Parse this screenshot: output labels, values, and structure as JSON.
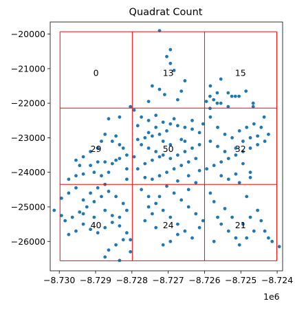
{
  "chart_data": {
    "type": "scatter",
    "title": "Quadrat Count",
    "xlabel": "",
    "ylabel": "",
    "x_offset_label": "1e6",
    "xlim": [
      -8.73025,
      -8.72385
    ],
    "ylim": [
      -26850,
      -19650
    ],
    "x_ticks": [
      -8.73,
      -8.729,
      -8.728,
      -8.727,
      -8.726,
      -8.725,
      -8.724
    ],
    "x_tick_labels": [
      "−8.730",
      "−8.729",
      "−8.728",
      "−8.727",
      "−8.726",
      "−8.725",
      "−8.724"
    ],
    "y_ticks": [
      -20000,
      -21000,
      -22000,
      -23000,
      -24000,
      -25000,
      -26000
    ],
    "y_tick_labels": [
      "−20000",
      "−21000",
      "−22000",
      "−23000",
      "−24000",
      "−25000",
      "−26000"
    ],
    "grid": false,
    "point_color": "#1f77b4",
    "quadrat_color": "#ff0000",
    "quadrats": {
      "x_edges": [
        -8.72998,
        -8.72799,
        -8.726,
        -8.72401
      ],
      "y_edges": [
        -19930,
        -22140,
        -24350,
        -26560
      ]
    },
    "counts": [
      {
        "x": -8.72899,
        "y": -21130,
        "label": "0"
      },
      {
        "x": -8.727,
        "y": -21130,
        "label": "13"
      },
      {
        "x": -8.72501,
        "y": -21130,
        "label": "15"
      },
      {
        "x": -8.72899,
        "y": -23330,
        "label": "29"
      },
      {
        "x": -8.727,
        "y": -23330,
        "label": "50"
      },
      {
        "x": -8.72501,
        "y": -23330,
        "label": "32"
      },
      {
        "x": -8.72899,
        "y": -25540,
        "label": "40"
      },
      {
        "x": -8.727,
        "y": -25540,
        "label": "24"
      },
      {
        "x": -8.72501,
        "y": -25540,
        "label": "21"
      }
    ],
    "points": [
      [
        -8.72724,
        -19900
      ],
      [
        -8.72694,
        -20450
      ],
      [
        -8.72704,
        -20650
      ],
      [
        -8.72694,
        -20850
      ],
      [
        -8.72684,
        -21050
      ],
      [
        -8.72724,
        -21600
      ],
      [
        -8.72744,
        -21500
      ],
      [
        -8.7271,
        -21750
      ],
      [
        -8.72654,
        -21350
      ],
      [
        -8.72664,
        -21650
      ],
      [
        -8.72754,
        -21950
      ],
      [
        -8.72674,
        -21900
      ],
      [
        -8.72595,
        -21950
      ],
      [
        -8.72585,
        -22150
      ],
      [
        -8.72565,
        -21700
      ],
      [
        -8.72584,
        -21500
      ],
      [
        -8.72555,
        -21300
      ],
      [
        -8.72535,
        -21700
      ],
      [
        -8.72525,
        -21800
      ],
      [
        -8.72515,
        -21800
      ],
      [
        -8.72505,
        -21800
      ],
      [
        -8.72486,
        -21650
      ],
      [
        -8.72585,
        -21800
      ],
      [
        -8.72575,
        -21900
      ],
      [
        -8.72565,
        -22000
      ],
      [
        -8.72555,
        -22000
      ],
      [
        -8.72535,
        -22100
      ],
      [
        -8.72466,
        -22000
      ],
      [
        -8.72466,
        -22100
      ],
      [
        -8.72436,
        -22400
      ],
      [
        -8.72864,
        -22450
      ],
      [
        -8.72834,
        -22400
      ],
      [
        -8.72804,
        -22100
      ],
      [
        -8.72794,
        -22200
      ],
      [
        -8.72844,
        -22950
      ],
      [
        -8.72854,
        -23100
      ],
      [
        -8.72874,
        -22900
      ],
      [
        -8.72884,
        -23100
      ],
      [
        -8.72894,
        -23300
      ],
      [
        -8.72914,
        -23400
      ],
      [
        -8.72934,
        -23550
      ],
      [
        -8.72954,
        -23650
      ],
      [
        -8.72944,
        -23800
      ],
      [
        -8.72914,
        -23800
      ],
      [
        -8.72894,
        -23700
      ],
      [
        -8.72874,
        -23700
      ],
      [
        -8.72854,
        -23750
      ],
      [
        -8.72834,
        -23600
      ],
      [
        -8.72814,
        -23500
      ],
      [
        -8.72824,
        -23300
      ],
      [
        -8.72834,
        -23200
      ],
      [
        -8.72864,
        -24000
      ],
      [
        -8.72884,
        -24100
      ],
      [
        -8.72904,
        -24000
      ],
      [
        -8.72934,
        -24050
      ],
      [
        -8.72954,
        -24100
      ],
      [
        -8.72974,
        -24200
      ],
      [
        -8.72814,
        -23900
      ],
      [
        -8.72844,
        -23650
      ],
      [
        -8.72814,
        -24200
      ],
      [
        -8.72774,
        -22400
      ],
      [
        -8.72754,
        -22500
      ],
      [
        -8.72734,
        -22350
      ],
      [
        -8.72714,
        -22550
      ],
      [
        -8.72694,
        -22600
      ],
      [
        -8.72674,
        -22650
      ],
      [
        -8.72654,
        -22700
      ],
      [
        -8.72634,
        -22750
      ],
      [
        -8.72614,
        -22850
      ],
      [
        -8.72704,
        -22800
      ],
      [
        -8.72724,
        -22900
      ],
      [
        -8.72744,
        -22950
      ],
      [
        -8.72764,
        -23000
      ],
      [
        -8.72784,
        -23050
      ],
      [
        -8.72774,
        -23200
      ],
      [
        -8.72754,
        -23300
      ],
      [
        -8.72734,
        -23400
      ],
      [
        -8.72714,
        -23500
      ],
      [
        -8.72694,
        -23600
      ],
      [
        -8.72674,
        -23500
      ],
      [
        -8.72654,
        -23400
      ],
      [
        -8.72634,
        -23300
      ],
      [
        -8.72614,
        -23200
      ],
      [
        -8.72624,
        -23600
      ],
      [
        -8.72644,
        -23700
      ],
      [
        -8.72664,
        -23800
      ],
      [
        -8.72684,
        -23900
      ],
      [
        -8.72704,
        -24000
      ],
      [
        -8.72724,
        -24100
      ],
      [
        -8.72744,
        -24200
      ],
      [
        -8.72764,
        -24150
      ],
      [
        -8.72784,
        -23900
      ],
      [
        -8.72764,
        -23750
      ],
      [
        -8.72744,
        -23650
      ],
      [
        -8.72724,
        -23550
      ],
      [
        -8.72664,
        -23050
      ],
      [
        -8.72634,
        -22500
      ],
      [
        -8.72604,
        -22600
      ],
      [
        -8.72614,
        -23950
      ],
      [
        -8.72644,
        -24100
      ],
      [
        -8.72674,
        -24250
      ],
      [
        -8.72694,
        -23200
      ],
      [
        -8.72714,
        -23100
      ],
      [
        -8.72734,
        -22700
      ],
      [
        -8.72784,
        -22650
      ],
      [
        -8.72754,
        -22850
      ],
      [
        -8.72794,
        -23550
      ],
      [
        -8.72684,
        -22450
      ],
      [
        -8.72654,
        -23100
      ],
      [
        -8.72624,
        -24300
      ],
      [
        -8.72584,
        -22400
      ],
      [
        -8.72564,
        -22700
      ],
      [
        -8.72544,
        -22900
      ],
      [
        -8.72524,
        -23000
      ],
      [
        -8.72504,
        -22800
      ],
      [
        -8.72484,
        -22700
      ],
      [
        -8.72464,
        -22600
      ],
      [
        -8.72444,
        -22700
      ],
      [
        -8.72424,
        -22900
      ],
      [
        -8.72434,
        -23100
      ],
      [
        -8.72454,
        -23200
      ],
      [
        -8.72474,
        -23300
      ],
      [
        -8.72494,
        -23400
      ],
      [
        -8.72514,
        -23500
      ],
      [
        -8.72534,
        -23600
      ],
      [
        -8.72554,
        -23700
      ],
      [
        -8.72574,
        -23800
      ],
      [
        -8.72594,
        -23900
      ],
      [
        -8.72514,
        -23300
      ],
      [
        -8.72494,
        -23100
      ],
      [
        -8.72474,
        -23000
      ],
      [
        -8.72454,
        -22950
      ],
      [
        -8.72544,
        -23400
      ],
      [
        -8.72564,
        -23250
      ],
      [
        -8.72584,
        -23100
      ],
      [
        -8.72494,
        -23750
      ],
      [
        -8.72474,
        -24000
      ],
      [
        -8.72514,
        -24050
      ],
      [
        -8.72554,
        -24100
      ],
      [
        -8.72534,
        -24200
      ],
      [
        -8.72504,
        -24300
      ],
      [
        -8.72474,
        -24150
      ],
      [
        -8.73014,
        -25100
      ],
      [
        -8.72994,
        -25250
      ],
      [
        -8.72984,
        -25400
      ],
      [
        -8.72964,
        -25300
      ],
      [
        -8.72944,
        -25150
      ],
      [
        -8.72924,
        -25000
      ],
      [
        -8.72904,
        -24850
      ],
      [
        -8.72884,
        -24700
      ],
      [
        -8.72864,
        -24550
      ],
      [
        -8.72844,
        -24700
      ],
      [
        -8.72824,
        -24900
      ],
      [
        -8.72814,
        -25100
      ],
      [
        -8.72834,
        -25300
      ],
      [
        -8.72854,
        -25450
      ],
      [
        -8.72874,
        -25600
      ],
      [
        -8.72894,
        -25750
      ],
      [
        -8.72914,
        -25650
      ],
      [
        -8.72934,
        -25500
      ],
      [
        -8.72954,
        -25700
      ],
      [
        -8.72974,
        -25800
      ],
      [
        -8.72994,
        -24750
      ],
      [
        -8.72974,
        -24600
      ],
      [
        -8.72954,
        -24450
      ],
      [
        -8.72934,
        -24800
      ],
      [
        -8.72914,
        -24600
      ],
      [
        -8.72894,
        -24450
      ],
      [
        -8.72874,
        -25100
      ],
      [
        -8.72854,
        -25250
      ],
      [
        -8.72834,
        -25550
      ],
      [
        -8.72814,
        -25750
      ],
      [
        -8.72824,
        -25950
      ],
      [
        -8.72844,
        -26100
      ],
      [
        -8.72864,
        -26250
      ],
      [
        -8.72874,
        -26450
      ],
      [
        -8.72834,
        -26550
      ],
      [
        -8.72804,
        -26300
      ],
      [
        -8.72804,
        -25950
      ],
      [
        -8.72904,
        -25300
      ],
      [
        -8.72934,
        -25200
      ],
      [
        -8.72874,
        -24350
      ],
      [
        -8.72774,
        -24500
      ],
      [
        -8.72754,
        -24700
      ],
      [
        -8.72734,
        -24900
      ],
      [
        -8.72714,
        -25100
      ],
      [
        -8.72694,
        -25300
      ],
      [
        -8.72674,
        -25500
      ],
      [
        -8.72654,
        -25700
      ],
      [
        -8.72634,
        -25900
      ],
      [
        -8.72614,
        -25600
      ],
      [
        -8.72604,
        -25400
      ],
      [
        -8.72624,
        -25200
      ],
      [
        -8.72644,
        -25000
      ],
      [
        -8.72664,
        -24800
      ],
      [
        -8.72684,
        -24600
      ],
      [
        -8.72704,
        -24400
      ],
      [
        -8.72724,
        -24700
      ],
      [
        -8.72744,
        -25200
      ],
      [
        -8.72764,
        -25400
      ],
      [
        -8.72674,
        -25800
      ],
      [
        -8.72694,
        -26000
      ],
      [
        -8.72714,
        -26100
      ],
      [
        -8.72734,
        -25600
      ],
      [
        -8.72754,
        -25000
      ],
      [
        -8.72644,
        -24500
      ],
      [
        -8.72584,
        -24600
      ],
      [
        -8.72574,
        -24850
      ],
      [
        -8.72564,
        -25300
      ],
      [
        -8.72554,
        -25500
      ],
      [
        -8.72534,
        -25700
      ],
      [
        -8.72514,
        -25900
      ],
      [
        -8.72494,
        -25500
      ],
      [
        -8.72474,
        -25300
      ],
      [
        -8.72454,
        -25100
      ],
      [
        -8.72444,
        -25400
      ],
      [
        -8.72464,
        -25700
      ],
      [
        -8.72484,
        -25900
      ],
      [
        -8.72504,
        -26100
      ],
      [
        -8.72524,
        -25300
      ],
      [
        -8.72544,
        -25050
      ],
      [
        -8.72424,
        -25900
      ],
      [
        -8.72414,
        -26000
      ],
      [
        -8.72394,
        -26150
      ],
      [
        -8.72574,
        -26000
      ],
      [
        -8.72434,
        -25700
      ],
      [
        -8.72484,
        -24700
      ]
    ]
  }
}
